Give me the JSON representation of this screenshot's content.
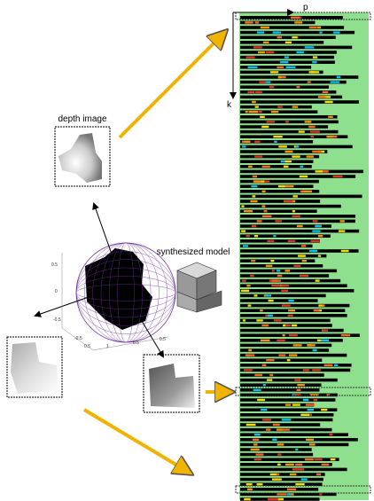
{
  "labels": {
    "p": "p",
    "k": "k",
    "depth_image": "depth image",
    "synthesized_model": "synthesized model"
  },
  "axis_ticks": [
    "0.5",
    "0",
    "-0.5",
    "-0.5",
    "0.5",
    "1",
    "0.5",
    "0.5"
  ]
}
